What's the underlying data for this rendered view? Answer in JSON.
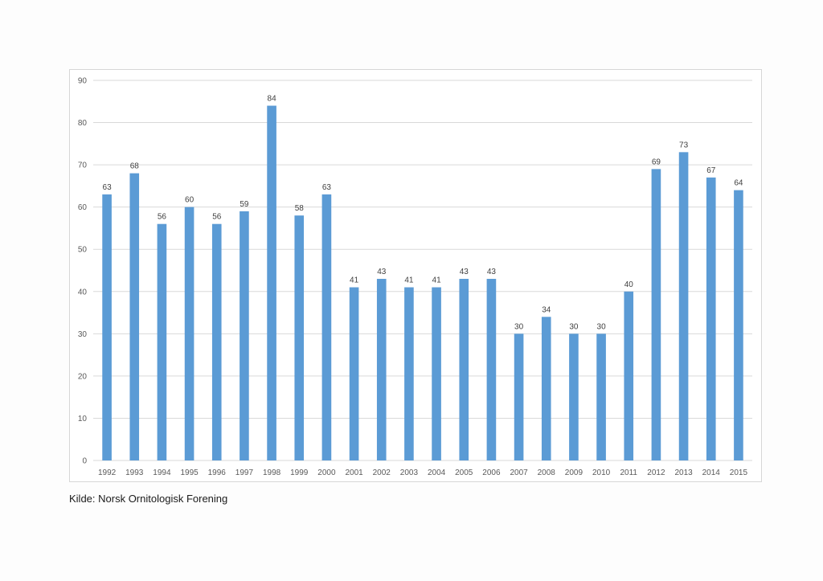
{
  "chart_data": {
    "type": "bar",
    "categories": [
      "1992",
      "1993",
      "1994",
      "1995",
      "1996",
      "1997",
      "1998",
      "1999",
      "2000",
      "2001",
      "2002",
      "2003",
      "2004",
      "2005",
      "2006",
      "2007",
      "2008",
      "2009",
      "2010",
      "2011",
      "2012",
      "2013",
      "2014",
      "2015"
    ],
    "series": [
      {
        "values": [
          63,
          68,
          56,
          60,
          56,
          59,
          84,
          58,
          63,
          41,
          43,
          41,
          41,
          43,
          43,
          30,
          34,
          30,
          30,
          40,
          69,
          73,
          67,
          64
        ]
      }
    ],
    "ylim": [
      0,
      90
    ],
    "yticks": [
      0,
      10,
      20,
      30,
      40,
      50,
      60,
      70,
      80,
      90
    ],
    "grid": true,
    "data_labels": true,
    "bar_color": "#5b9bd5",
    "grid_color": "#d9d9d9",
    "title": "",
    "xlabel": "",
    "ylabel": ""
  },
  "source": "Kilde: Norsk Ornitologisk Forening"
}
